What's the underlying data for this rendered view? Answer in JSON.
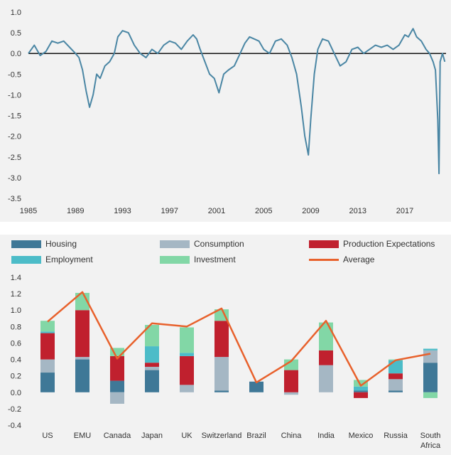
{
  "chart_data": [
    {
      "type": "line",
      "title": "",
      "xlabel": "",
      "ylabel": "",
      "ylim": [
        -3.5,
        1.0
      ],
      "yticks": [
        "1.0",
        "0.5",
        "0.0",
        "-0.5",
        "-1.0",
        "-1.5",
        "-2.0",
        "-2.5",
        "-3.0",
        "-3.5"
      ],
      "xticks": [
        "1985",
        "1989",
        "1993",
        "1997",
        "2001",
        "2005",
        "2009",
        "2013",
        "2017"
      ],
      "xlim": [
        1985,
        2020.5
      ],
      "grid": false,
      "series_color": "#4a86a4",
      "x": [
        1985.0,
        1985.5,
        1986.0,
        1986.5,
        1987.0,
        1987.5,
        1988.0,
        1988.5,
        1989.0,
        1989.3,
        1989.6,
        1989.9,
        1990.2,
        1990.5,
        1990.8,
        1991.1,
        1991.5,
        1991.9,
        1992.3,
        1992.6,
        1993.0,
        1993.5,
        1994.0,
        1994.5,
        1995.0,
        1995.5,
        1996.0,
        1996.5,
        1997.0,
        1997.5,
        1998.0,
        1998.5,
        1999.0,
        1999.3,
        1999.6,
        2000.0,
        2000.4,
        2000.8,
        2001.2,
        2001.6,
        2002.0,
        2002.5,
        2003.0,
        2003.4,
        2003.8,
        2004.2,
        2004.6,
        2005.0,
        2005.5,
        2006.0,
        2006.5,
        2007.0,
        2007.4,
        2007.8,
        2008.2,
        2008.5,
        2008.8,
        2009.0,
        2009.3,
        2009.6,
        2010.0,
        2010.5,
        2011.0,
        2011.5,
        2012.0,
        2012.5,
        2013.0,
        2013.5,
        2014.0,
        2014.5,
        2015.0,
        2015.5,
        2016.0,
        2016.5,
        2017.0,
        2017.3,
        2017.7,
        2018.0,
        2018.4,
        2018.8,
        2019.1,
        2019.4,
        2019.6,
        2019.8,
        2019.9,
        2020.0,
        2020.2,
        2020.4
      ],
      "y": [
        0.0,
        0.2,
        -0.05,
        0.05,
        0.3,
        0.25,
        0.3,
        0.15,
        0.0,
        -0.1,
        -0.4,
        -0.9,
        -1.3,
        -1.0,
        -0.5,
        -0.6,
        -0.3,
        -0.2,
        0.0,
        0.4,
        0.55,
        0.5,
        0.2,
        0.0,
        -0.1,
        0.1,
        0.0,
        0.2,
        0.3,
        0.25,
        0.1,
        0.3,
        0.45,
        0.35,
        0.1,
        -0.2,
        -0.5,
        -0.6,
        -0.95,
        -0.5,
        -0.4,
        -0.3,
        0.0,
        0.25,
        0.4,
        0.35,
        0.3,
        0.1,
        0.0,
        0.3,
        0.35,
        0.2,
        -0.1,
        -0.5,
        -1.3,
        -2.0,
        -2.45,
        -1.6,
        -0.5,
        0.1,
        0.35,
        0.3,
        0.0,
        -0.3,
        -0.2,
        0.1,
        0.15,
        0.0,
        0.1,
        0.2,
        0.15,
        0.2,
        0.1,
        0.2,
        0.45,
        0.4,
        0.6,
        0.4,
        0.3,
        0.1,
        0.0,
        -0.2,
        -0.4,
        -1.6,
        -2.9,
        -0.2,
        0.0,
        -0.2
      ]
    },
    {
      "type": "bar",
      "stacked": true,
      "title": "",
      "xlabel": "",
      "ylabel": "",
      "ylim": [
        -0.4,
        1.4
      ],
      "yticks": [
        "1.4",
        "1.2",
        "1.0",
        "0.8",
        "0.6",
        "0.4",
        "0.2",
        "0.0",
        "-0.2",
        "-0.4"
      ],
      "categories": [
        "US",
        "EMU",
        "Canada",
        "Japan",
        "UK",
        "Switzerland",
        "Brazil",
        "China",
        "India",
        "Mexico",
        "Russia",
        "South Africa"
      ],
      "legend_position": "top",
      "series": [
        {
          "name": "Housing",
          "color": "#3f7897",
          "values": [
            0.24,
            0.4,
            0.14,
            0.27,
            0.0,
            0.02,
            0.13,
            0.0,
            0.0,
            0.02,
            0.02,
            0.36
          ]
        },
        {
          "name": "Consumption",
          "color": "#a5b7c4",
          "values": [
            0.16,
            0.03,
            -0.14,
            0.04,
            0.09,
            0.41,
            0.0,
            -0.03,
            0.33,
            0.0,
            0.14,
            0.15
          ]
        },
        {
          "name": "Production Expectations",
          "color": "#c0202e",
          "values": [
            0.32,
            0.57,
            0.3,
            0.05,
            0.35,
            0.44,
            0.0,
            0.27,
            0.18,
            -0.07,
            0.07,
            0.0
          ]
        },
        {
          "name": "Employment",
          "color": "#4cbcc8",
          "values": [
            0.02,
            0.0,
            0.0,
            0.2,
            0.04,
            0.0,
            0.0,
            0.0,
            0.0,
            0.05,
            0.16,
            0.02
          ]
        },
        {
          "name": "Investment",
          "color": "#82d7a6",
          "values": [
            0.13,
            0.21,
            0.1,
            0.26,
            0.31,
            0.14,
            0.0,
            0.13,
            0.34,
            0.08,
            0.01,
            -0.07
          ]
        }
      ],
      "average": {
        "name": "Average",
        "color": "#e8612c",
        "values": [
          0.86,
          1.22,
          0.41,
          0.84,
          0.8,
          1.02,
          0.12,
          0.38,
          0.87,
          0.08,
          0.39,
          0.47
        ]
      }
    }
  ],
  "legend": {
    "housing": "Housing",
    "consumption": "Consumption",
    "production": "Production Expectations",
    "employment": "Employment",
    "investment": "Investment",
    "average": "Average"
  }
}
